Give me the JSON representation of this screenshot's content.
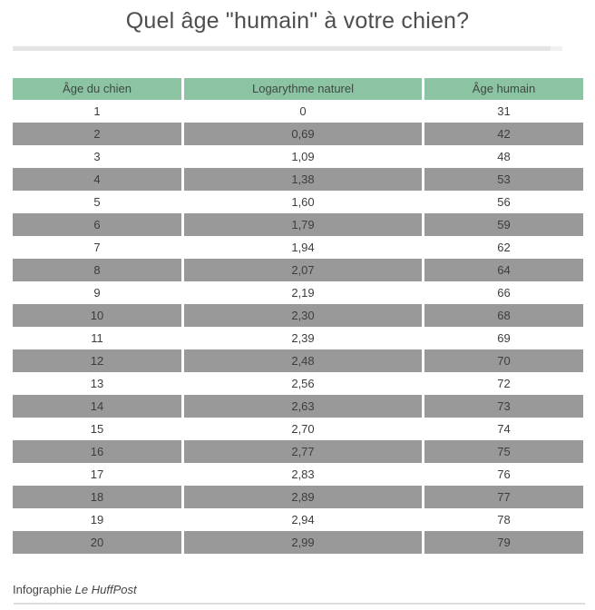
{
  "title": "Quel âge \"humain\" à votre chien?",
  "chart_data": {
    "type": "table",
    "title": "Quel âge \"humain\" à votre chien?",
    "columns": [
      "Âge du chien",
      "Logarythme naturel",
      "Âge humain"
    ],
    "rows": [
      [
        "1",
        "0",
        "31"
      ],
      [
        "2",
        "0,69",
        "42"
      ],
      [
        "3",
        "1,09",
        "48"
      ],
      [
        "4",
        "1,38",
        "53"
      ],
      [
        "5",
        "1,60",
        "56"
      ],
      [
        "6",
        "1,79",
        "59"
      ],
      [
        "7",
        "1,94",
        "62"
      ],
      [
        "8",
        "2,07",
        "64"
      ],
      [
        "9",
        "2,19",
        "66"
      ],
      [
        "10",
        "2,30",
        "68"
      ],
      [
        "11",
        "2,39",
        "69"
      ],
      [
        "12",
        "2,48",
        "70"
      ],
      [
        "13",
        "2,56",
        "72"
      ],
      [
        "14",
        "2,63",
        "73"
      ],
      [
        "15",
        "2,70",
        "74"
      ],
      [
        "16",
        "2,77",
        "75"
      ],
      [
        "17",
        "2,83",
        "76"
      ],
      [
        "18",
        "2,89",
        "77"
      ],
      [
        "19",
        "2,94",
        "78"
      ],
      [
        "20",
        "2,99",
        "79"
      ]
    ],
    "layout": {
      "header_position": "top",
      "row_striping": "even-rows-gray",
      "grid": "off"
    }
  },
  "footer": {
    "prefix": "Infographie ",
    "source": "Le HuffPost"
  },
  "colors": {
    "header_bg": "#8cc3a3",
    "header_text": "#3e4a43",
    "alt_row_bg": "#999999",
    "cell_text": "#3d3d3d",
    "title_text": "#4e4e4e",
    "footer_text": "#454545",
    "separator": "#e4e4e4",
    "hairline": "#dcdcdc"
  }
}
